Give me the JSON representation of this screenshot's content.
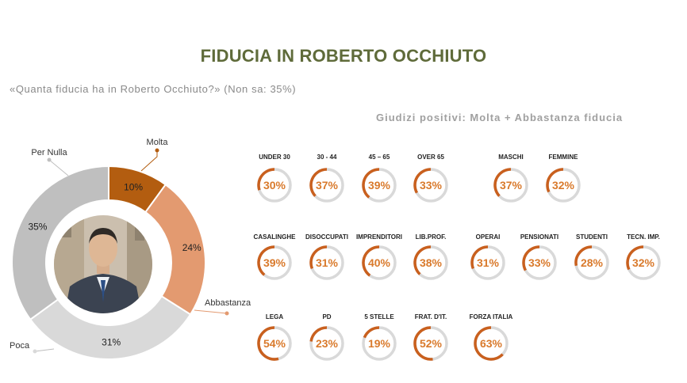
{
  "title": "FIDUCIA IN ROBERTO OCCHIUTO",
  "subtitle": "«Quanta fiducia ha in Roberto Occhiuto?» (Non sa: 35%)",
  "section_label": "Giudizi positivi: Molta + Abbastanza fiducia",
  "colors": {
    "molta": "#b35d10",
    "abbastanza": "#e39a70",
    "poca": "#d9d9d9",
    "per_nulla": "#bfbfbf",
    "gauge_arc": "#c9601e",
    "gauge_track": "#d9d9d9",
    "gauge_text": "#d97a2c",
    "title": "#5f6b3a"
  },
  "chart_data": [
    {
      "type": "pie",
      "variant": "donut",
      "labels": [
        "Molta",
        "Abbastanza",
        "Poca",
        "Per Nulla"
      ],
      "values": [
        10,
        24,
        31,
        35
      ],
      "value_labels": [
        "10%",
        "24%",
        "31%",
        "35%"
      ]
    },
    {
      "type": "bar",
      "variant": "radial-gauge",
      "rows": [
        {
          "categories": [
            "UNDER 30",
            "30 - 44",
            "45 – 65",
            "OVER 65",
            "MASCHI",
            "FEMMINE"
          ],
          "values": [
            30,
            37,
            39,
            33,
            37,
            32
          ],
          "value_labels": [
            "30%",
            "37%",
            "39%",
            "33%",
            "37%",
            "32%"
          ]
        },
        {
          "categories": [
            "CASALINGHE",
            "DISOCCUPATI",
            "IMPRENDITORI",
            "LIB.PROF.",
            "OPERAI",
            "PENSIONATI",
            "STUDENTI",
            "TECN. IMP."
          ],
          "values": [
            39,
            31,
            40,
            38,
            31,
            33,
            28,
            32
          ],
          "value_labels": [
            "39%",
            "31%",
            "40%",
            "38%",
            "31%",
            "33%",
            "28%",
            "32%"
          ]
        },
        {
          "categories": [
            "LEGA",
            "PD",
            "5 STELLE",
            "FRAT. D'IT.",
            "FORZA ITALIA"
          ],
          "values": [
            54,
            23,
            19,
            52,
            63
          ],
          "value_labels": [
            "54%",
            "23%",
            "19%",
            "52%",
            "63%"
          ]
        }
      ],
      "ylim": [
        0,
        100
      ]
    }
  ]
}
